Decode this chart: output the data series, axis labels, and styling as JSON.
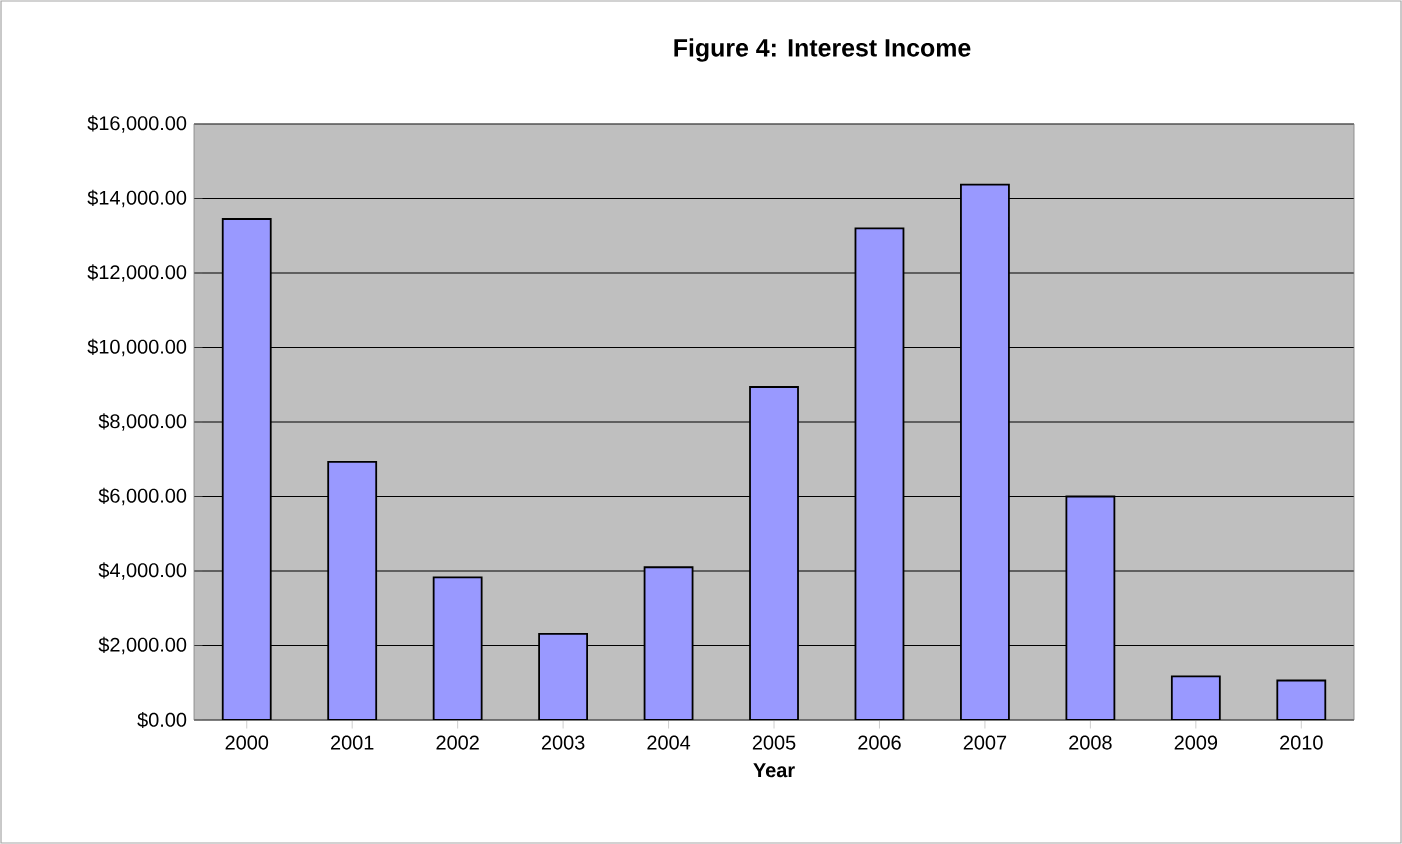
{
  "chart_data": {
    "type": "bar",
    "title": "Figure 4: Interest Income",
    "xlabel": "Year",
    "categories": [
      "2000",
      "2001",
      "2002",
      "2003",
      "2004",
      "2005",
      "2006",
      "2007",
      "2008",
      "2009",
      "2010"
    ],
    "values": [
      13450,
      6930,
      3830,
      2310,
      4100,
      8940,
      13200,
      14370,
      6000,
      1170,
      1060
    ],
    "color": "#9999ff",
    "ylim": [
      0,
      16000
    ],
    "yticks": [
      {
        "value": 0,
        "label": "$0.00"
      },
      {
        "value": 2000,
        "label": "$2,000.00"
      },
      {
        "value": 4000,
        "label": "$4,000.00"
      },
      {
        "value": 6000,
        "label": "$6,000.00"
      },
      {
        "value": 8000,
        "label": "$8,000.00"
      },
      {
        "value": 10000,
        "label": "$10,000.00"
      },
      {
        "value": 12000,
        "label": "$12,000.00"
      },
      {
        "value": 14000,
        "label": "$14,000.00"
      },
      {
        "value": 16000,
        "label": "$16,000.00"
      }
    ],
    "grid": "y"
  }
}
